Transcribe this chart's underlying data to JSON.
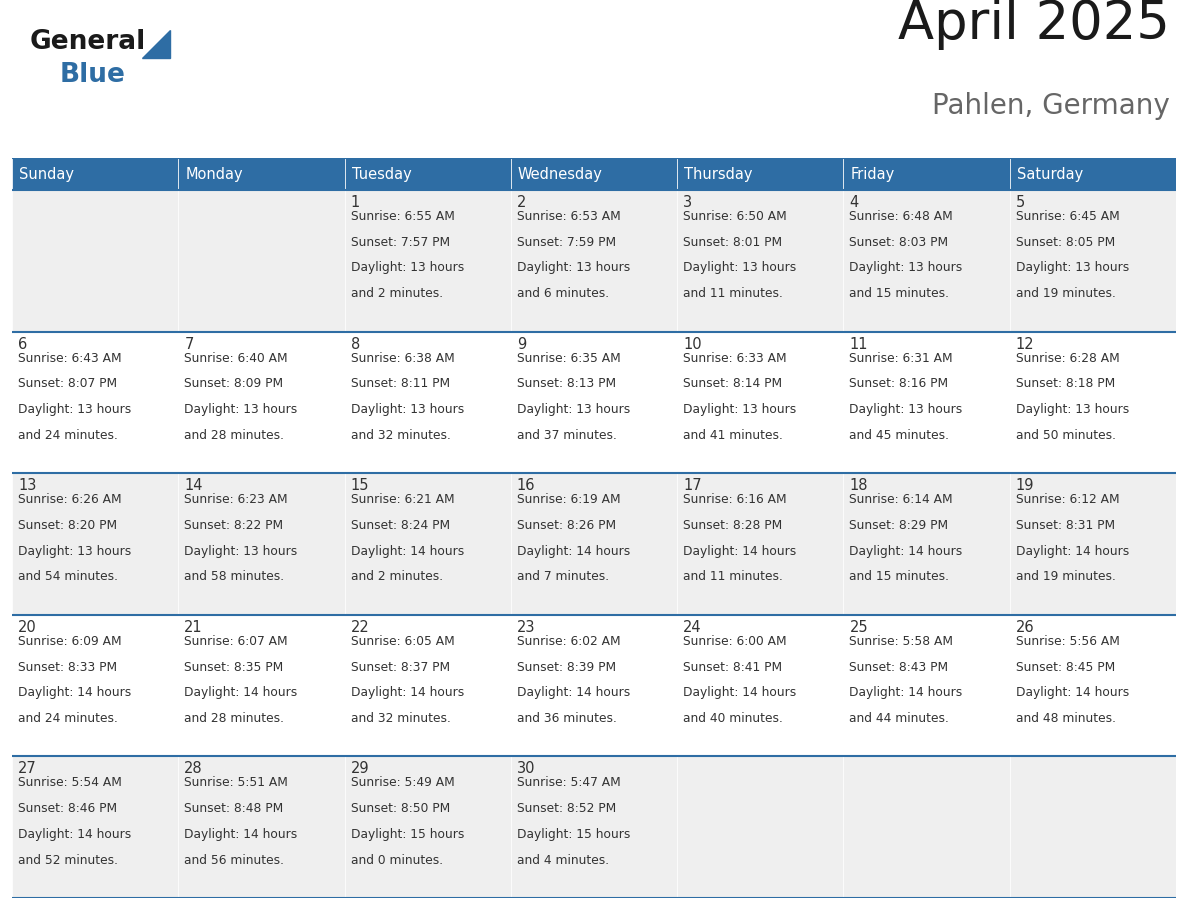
{
  "title": "April 2025",
  "subtitle": "Pahlen, Germany",
  "header_color": "#2E6DA4",
  "header_text_color": "#FFFFFF",
  "bg_color": "#FFFFFF",
  "cell_bg_even": "#EFEFEF",
  "cell_bg_odd": "#FFFFFF",
  "text_color": "#333333",
  "day_headers": [
    "Sunday",
    "Monday",
    "Tuesday",
    "Wednesday",
    "Thursday",
    "Friday",
    "Saturday"
  ],
  "days": [
    {
      "date": 1,
      "col": 2,
      "row": 0,
      "sunrise": "6:55 AM",
      "sunset": "7:57 PM",
      "daylight": "13 hours",
      "daylight2": "and 2 minutes."
    },
    {
      "date": 2,
      "col": 3,
      "row": 0,
      "sunrise": "6:53 AM",
      "sunset": "7:59 PM",
      "daylight": "13 hours",
      "daylight2": "and 6 minutes."
    },
    {
      "date": 3,
      "col": 4,
      "row": 0,
      "sunrise": "6:50 AM",
      "sunset": "8:01 PM",
      "daylight": "13 hours",
      "daylight2": "and 11 minutes."
    },
    {
      "date": 4,
      "col": 5,
      "row": 0,
      "sunrise": "6:48 AM",
      "sunset": "8:03 PM",
      "daylight": "13 hours",
      "daylight2": "and 15 minutes."
    },
    {
      "date": 5,
      "col": 6,
      "row": 0,
      "sunrise": "6:45 AM",
      "sunset": "8:05 PM",
      "daylight": "13 hours",
      "daylight2": "and 19 minutes."
    },
    {
      "date": 6,
      "col": 0,
      "row": 1,
      "sunrise": "6:43 AM",
      "sunset": "8:07 PM",
      "daylight": "13 hours",
      "daylight2": "and 24 minutes."
    },
    {
      "date": 7,
      "col": 1,
      "row": 1,
      "sunrise": "6:40 AM",
      "sunset": "8:09 PM",
      "daylight": "13 hours",
      "daylight2": "and 28 minutes."
    },
    {
      "date": 8,
      "col": 2,
      "row": 1,
      "sunrise": "6:38 AM",
      "sunset": "8:11 PM",
      "daylight": "13 hours",
      "daylight2": "and 32 minutes."
    },
    {
      "date": 9,
      "col": 3,
      "row": 1,
      "sunrise": "6:35 AM",
      "sunset": "8:13 PM",
      "daylight": "13 hours",
      "daylight2": "and 37 minutes."
    },
    {
      "date": 10,
      "col": 4,
      "row": 1,
      "sunrise": "6:33 AM",
      "sunset": "8:14 PM",
      "daylight": "13 hours",
      "daylight2": "and 41 minutes."
    },
    {
      "date": 11,
      "col": 5,
      "row": 1,
      "sunrise": "6:31 AM",
      "sunset": "8:16 PM",
      "daylight": "13 hours",
      "daylight2": "and 45 minutes."
    },
    {
      "date": 12,
      "col": 6,
      "row": 1,
      "sunrise": "6:28 AM",
      "sunset": "8:18 PM",
      "daylight": "13 hours",
      "daylight2": "and 50 minutes."
    },
    {
      "date": 13,
      "col": 0,
      "row": 2,
      "sunrise": "6:26 AM",
      "sunset": "8:20 PM",
      "daylight": "13 hours",
      "daylight2": "and 54 minutes."
    },
    {
      "date": 14,
      "col": 1,
      "row": 2,
      "sunrise": "6:23 AM",
      "sunset": "8:22 PM",
      "daylight": "13 hours",
      "daylight2": "and 58 minutes."
    },
    {
      "date": 15,
      "col": 2,
      "row": 2,
      "sunrise": "6:21 AM",
      "sunset": "8:24 PM",
      "daylight": "14 hours",
      "daylight2": "and 2 minutes."
    },
    {
      "date": 16,
      "col": 3,
      "row": 2,
      "sunrise": "6:19 AM",
      "sunset": "8:26 PM",
      "daylight": "14 hours",
      "daylight2": "and 7 minutes."
    },
    {
      "date": 17,
      "col": 4,
      "row": 2,
      "sunrise": "6:16 AM",
      "sunset": "8:28 PM",
      "daylight": "14 hours",
      "daylight2": "and 11 minutes."
    },
    {
      "date": 18,
      "col": 5,
      "row": 2,
      "sunrise": "6:14 AM",
      "sunset": "8:29 PM",
      "daylight": "14 hours",
      "daylight2": "and 15 minutes."
    },
    {
      "date": 19,
      "col": 6,
      "row": 2,
      "sunrise": "6:12 AM",
      "sunset": "8:31 PM",
      "daylight": "14 hours",
      "daylight2": "and 19 minutes."
    },
    {
      "date": 20,
      "col": 0,
      "row": 3,
      "sunrise": "6:09 AM",
      "sunset": "8:33 PM",
      "daylight": "14 hours",
      "daylight2": "and 24 minutes."
    },
    {
      "date": 21,
      "col": 1,
      "row": 3,
      "sunrise": "6:07 AM",
      "sunset": "8:35 PM",
      "daylight": "14 hours",
      "daylight2": "and 28 minutes."
    },
    {
      "date": 22,
      "col": 2,
      "row": 3,
      "sunrise": "6:05 AM",
      "sunset": "8:37 PM",
      "daylight": "14 hours",
      "daylight2": "and 32 minutes."
    },
    {
      "date": 23,
      "col": 3,
      "row": 3,
      "sunrise": "6:02 AM",
      "sunset": "8:39 PM",
      "daylight": "14 hours",
      "daylight2": "and 36 minutes."
    },
    {
      "date": 24,
      "col": 4,
      "row": 3,
      "sunrise": "6:00 AM",
      "sunset": "8:41 PM",
      "daylight": "14 hours",
      "daylight2": "and 40 minutes."
    },
    {
      "date": 25,
      "col": 5,
      "row": 3,
      "sunrise": "5:58 AM",
      "sunset": "8:43 PM",
      "daylight": "14 hours",
      "daylight2": "and 44 minutes."
    },
    {
      "date": 26,
      "col": 6,
      "row": 3,
      "sunrise": "5:56 AM",
      "sunset": "8:45 PM",
      "daylight": "14 hours",
      "daylight2": "and 48 minutes."
    },
    {
      "date": 27,
      "col": 0,
      "row": 4,
      "sunrise": "5:54 AM",
      "sunset": "8:46 PM",
      "daylight": "14 hours",
      "daylight2": "and 52 minutes."
    },
    {
      "date": 28,
      "col": 1,
      "row": 4,
      "sunrise": "5:51 AM",
      "sunset": "8:48 PM",
      "daylight": "14 hours",
      "daylight2": "and 56 minutes."
    },
    {
      "date": 29,
      "col": 2,
      "row": 4,
      "sunrise": "5:49 AM",
      "sunset": "8:50 PM",
      "daylight": "15 hours",
      "daylight2": "and 0 minutes."
    },
    {
      "date": 30,
      "col": 3,
      "row": 4,
      "sunrise": "5:47 AM",
      "sunset": "8:52 PM",
      "daylight": "15 hours",
      "daylight2": "and 4 minutes."
    }
  ],
  "num_rows": 5,
  "num_cols": 7,
  "logo_color_general": "#1A1A1A",
  "logo_color_blue": "#2E6DA4",
  "logo_triangle_color": "#2E6DA4"
}
